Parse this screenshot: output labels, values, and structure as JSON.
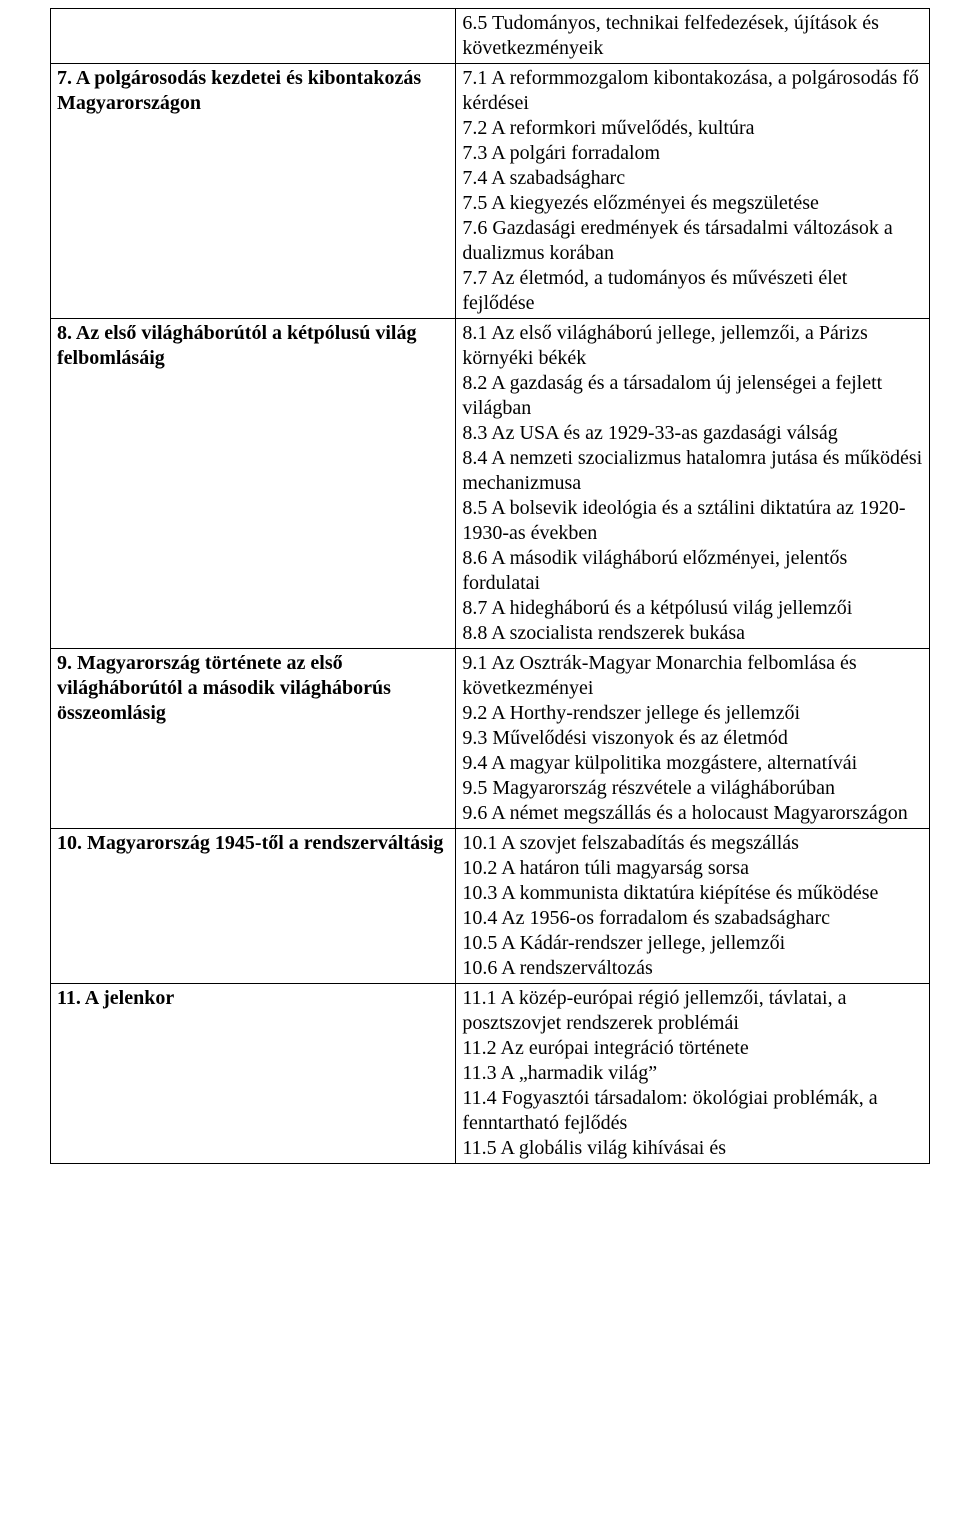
{
  "table": {
    "rows": [
      {
        "left_bold": "",
        "right": "6.5 Tudományos, technikai felfedezések, újítások és következményeik"
      },
      {
        "left_bold": "7. A polgárosodás kezdetei és kibontakozás Magyarországon",
        "right": "7.1 A reformmozgalom kibontakozása, a polgárosodás fő kérdései\n7.2 A reformkori művelődés, kultúra\n7.3 A polgári forradalom\n7.4 A szabadságharc\n7.5 A kiegyezés előzményei és megszületése\n7.6 Gazdasági eredmények és társadalmi változások a dualizmus korában\n7.7 Az életmód, a tudományos és művészeti élet fejlődése"
      },
      {
        "left_bold": "8. Az első világháborútól a kétpólusú világ felbomlásáig",
        "right": "8.1 Az első világháború jellege, jellemzői, a Párizs környéki békék\n8.2 A gazdaság és a társadalom új jelenségei a fejlett világban\n8.3 Az USA és az 1929-33-as gazdasági válság\n8.4 A nemzeti szocializmus hatalomra jutása és működési mechanizmusa\n8.5 A bolsevik ideológia és a sztálini diktatúra az 1920-1930-as években\n8.6 A második világháború előzményei, jelentős fordulatai\n8.7 A hidegháború és a kétpólusú világ jellemzői\n8.8 A szocialista rendszerek bukása"
      },
      {
        "left_bold": "9. Magyarország története az első világháborútól a második világháborús összeomlásig",
        "right": "9.1 Az Osztrák-Magyar Monarchia felbomlása és következményei\n9.2 A Horthy-rendszer jellege és jellemzői\n9.3 Művelődési viszonyok és az életmód\n9.4 A magyar külpolitika mozgástere, alternatívái\n9.5 Magyarország részvétele a világháborúban\n9.6 A német megszállás és a holocaust Magyarországon"
      },
      {
        "left_bold": "10. Magyarország 1945-től a rendszerváltásig",
        "right": "10.1 A szovjet felszabadítás és megszállás\n10.2 A határon túli magyarság sorsa\n10.3 A kommunista diktatúra kiépítése és működése\n10.4 Az 1956-os forradalom és szabadságharc\n10.5 A Kádár-rendszer jellege, jellemzői\n10.6 A rendszerváltozás"
      },
      {
        "left_bold": "11. A jelenkor",
        "right": "11.1 A közép-európai régió jellemzői, távlatai, a posztszovjet rendszerek problémái\n11.2 Az európai integráció története\n11.3 A „harmadik világ”\n11.4 Fogyasztói társadalom: ökológiai problémák, a fenntartható fejlődés\n11.5 A globális világ kihívásai és"
      }
    ]
  }
}
